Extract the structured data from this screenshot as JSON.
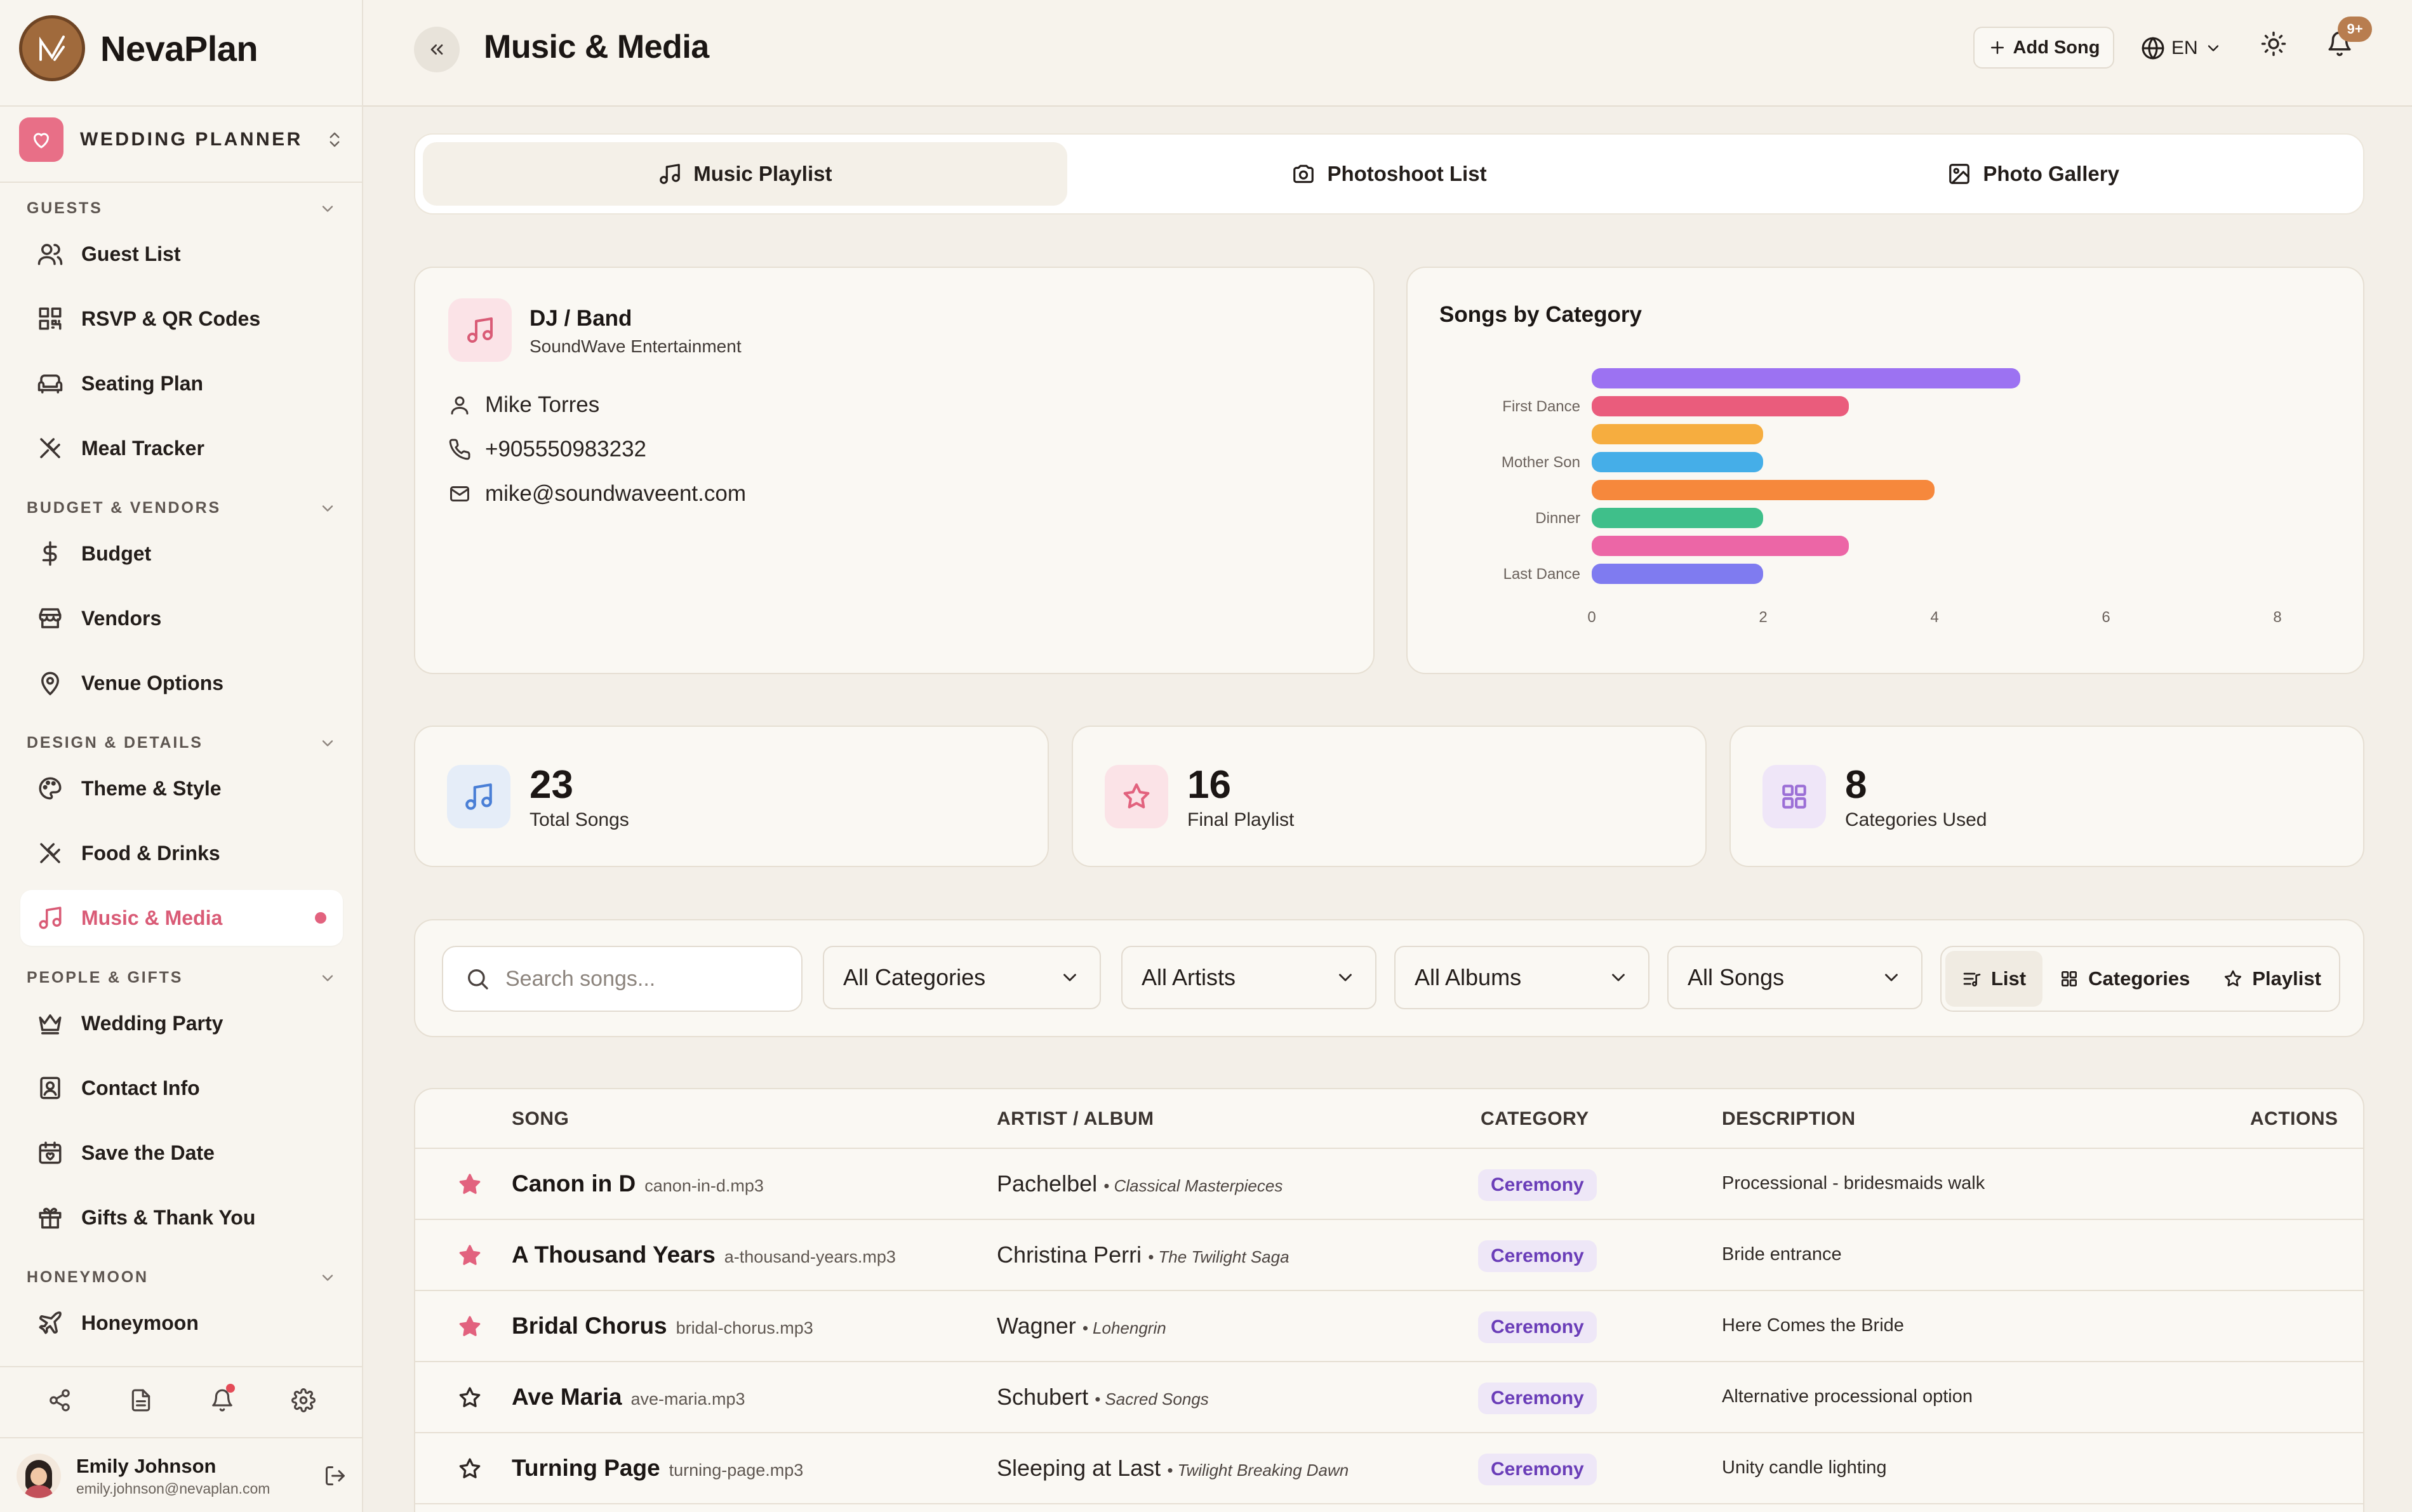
{
  "brand": {
    "name": "NevaPlan"
  },
  "workspace": {
    "label": "WEDDING PLANNER"
  },
  "sidebar": {
    "sections": [
      {
        "title": "GUESTS",
        "items": [
          "Guest List",
          "RSVP & QR Codes",
          "Seating Plan",
          "Meal Tracker"
        ]
      },
      {
        "title": "BUDGET & VENDORS",
        "items": [
          "Budget",
          "Vendors",
          "Venue Options"
        ]
      },
      {
        "title": "DESIGN & DETAILS",
        "items": [
          "Theme & Style",
          "Food & Drinks",
          "Music & Media"
        ]
      },
      {
        "title": "PEOPLE & GIFTS",
        "items": [
          "Wedding Party",
          "Contact Info",
          "Save the Date",
          "Gifts & Thank You"
        ]
      },
      {
        "title": "HONEYMOON",
        "items": [
          "Honeymoon"
        ]
      }
    ],
    "active_item": "Music & Media"
  },
  "user": {
    "name": "Emily Johnson",
    "email": "emily.johnson@nevaplan.com"
  },
  "header": {
    "title": "Music & Media",
    "add_song": "Add Song",
    "language": "EN",
    "notification_badge": "9+"
  },
  "tabs": [
    {
      "label": "Music Playlist",
      "icon": "music-note-icon",
      "active": true
    },
    {
      "label": "Photoshoot List",
      "icon": "camera-icon",
      "active": false
    },
    {
      "label": "Photo Gallery",
      "icon": "image-icon",
      "active": false
    }
  ],
  "dj": {
    "title": "DJ / Band",
    "company": "SoundWave Entertainment",
    "contact_name": "Mike Torres",
    "phone": "+905550983232",
    "email": "mike@soundwaveent.com"
  },
  "chart_data": {
    "type": "bar",
    "orientation": "horizontal",
    "title": "Songs by Category",
    "categories": [
      "",
      "First Dance",
      "",
      "Mother Son",
      "",
      "Dinner",
      "",
      "Last Dance"
    ],
    "tick_labels": [
      "First Dance",
      "Mother Son",
      "Dinner",
      "Last Dance"
    ],
    "values": [
      5,
      3,
      2,
      2,
      4,
      2,
      3,
      2
    ],
    "colors": [
      "#9c72f2",
      "#ea5c7c",
      "#f6ad3f",
      "#45aee8",
      "#f6883c",
      "#3fbf8a",
      "#ec66a6",
      "#7f7bf0"
    ],
    "xlim": [
      0,
      8
    ],
    "xticks": [
      0,
      2,
      4,
      6,
      8
    ],
    "grid": false,
    "legend": "none"
  },
  "stats": [
    {
      "value": "23",
      "label": "Total Songs",
      "icon": "music-note-icon",
      "color": "#4a7fd6",
      "bg": "#e5edf8"
    },
    {
      "value": "16",
      "label": "Final Playlist",
      "icon": "star-icon",
      "color": "#e2627e",
      "bg": "#fbe3e7"
    },
    {
      "value": "8",
      "label": "Categories Used",
      "icon": "grid-icon",
      "color": "#9b6fd6",
      "bg": "#efe6f8"
    }
  ],
  "filters": {
    "search_placeholder": "Search songs...",
    "selects": [
      "All Categories",
      "All Artists",
      "All Albums",
      "All Songs"
    ],
    "views": [
      "List",
      "Categories",
      "Playlist"
    ],
    "active_view": "List"
  },
  "table": {
    "headers": {
      "song": "SONG",
      "artist": "ARTIST / ALBUM",
      "category": "CATEGORY",
      "description": "DESCRIPTION",
      "actions": "ACTIONS"
    },
    "rows": [
      {
        "song": "Canon in D",
        "file": "canon-in-d.mp3",
        "artist": "Pachelbel",
        "album": "• Classical Masterpieces",
        "category": "Ceremony",
        "description": "Processional - bridesmaids walk",
        "favorite": true
      },
      {
        "song": "A Thousand Years",
        "file": "a-thousand-years.mp3",
        "artist": "Christina Perri",
        "album": "• The Twilight Saga",
        "category": "Ceremony",
        "description": "Bride entrance",
        "favorite": true
      },
      {
        "song": "Bridal Chorus",
        "file": "bridal-chorus.mp3",
        "artist": "Wagner",
        "album": "• Lohengrin",
        "category": "Ceremony",
        "description": "Here Comes the Bride",
        "favorite": true
      },
      {
        "song": "Ave Maria",
        "file": "ave-maria.mp3",
        "artist": "Schubert",
        "album": "• Sacred Songs",
        "category": "Ceremony",
        "description": "Alternative processional option",
        "favorite": false
      },
      {
        "song": "Turning Page",
        "file": "turning-page.mp3",
        "artist": "Sleeping at Last",
        "album": "• Twilight Breaking Dawn",
        "category": "Ceremony",
        "description": "Unity candle lighting",
        "favorite": false
      }
    ]
  }
}
